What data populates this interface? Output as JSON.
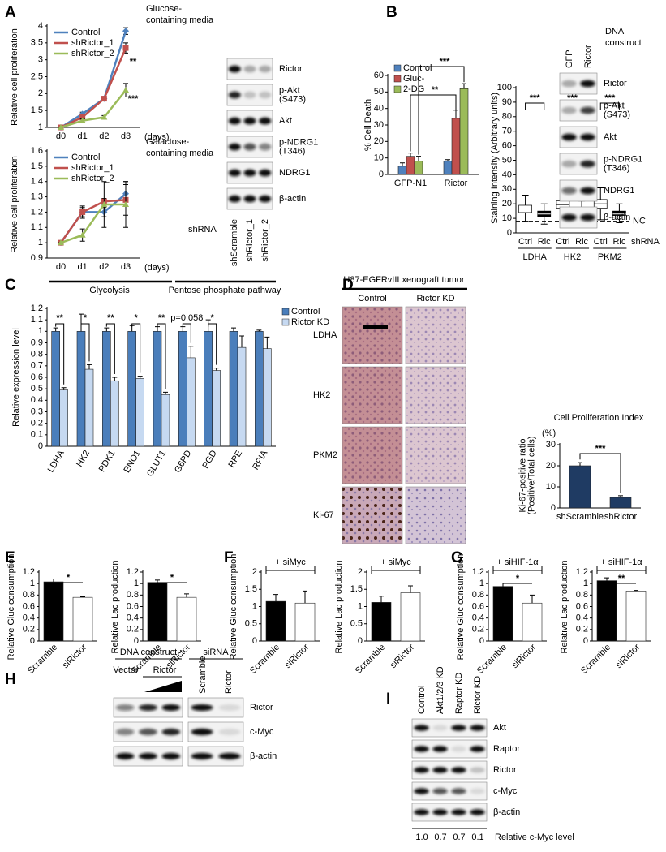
{
  "panel_labels": [
    "A",
    "B",
    "C",
    "D",
    "E",
    "F",
    "G",
    "H",
    "I"
  ],
  "chart_data": [
    {
      "type": "line",
      "title": [
        "Glucose-",
        "containing media"
      ],
      "ylabel": "Relative cell proliferation",
      "xlabel": "(days)",
      "categories": [
        "d0",
        "d1",
        "d2",
        "d3"
      ],
      "ylim": [
        1,
        4
      ],
      "yticks": [
        1,
        1.5,
        2,
        2.5,
        3,
        3.5,
        4
      ],
      "series": [
        {
          "name": "Control",
          "color": "#4f81bd",
          "values": [
            1,
            1.4,
            1.85,
            3.85
          ],
          "errors": [
            0,
            0.05,
            0.05,
            0.1
          ]
        },
        {
          "name": "shRictor_1",
          "color": "#c0504d",
          "values": [
            1,
            1.3,
            1.85,
            3.35
          ],
          "errors": [
            0,
            0.05,
            0.05,
            0.15
          ]
        },
        {
          "name": "shRictor_2",
          "color": "#9bbb59",
          "values": [
            1,
            1.2,
            1.3,
            2.1
          ],
          "errors": [
            0,
            0.05,
            0.05,
            0.2
          ]
        }
      ],
      "annotations": [
        "**",
        "***"
      ]
    },
    {
      "type": "line",
      "title": [
        "Galactose-",
        "containing media"
      ],
      "ylabel": "Relative cell proliferation",
      "xlabel": "(days)",
      "categories": [
        "d0",
        "d1",
        "d2",
        "d3"
      ],
      "ylim": [
        0.9,
        1.6
      ],
      "yticks": [
        0.9,
        1,
        1.1,
        1.2,
        1.3,
        1.4,
        1.5,
        1.6
      ],
      "series": [
        {
          "name": "Control",
          "color": "#4f81bd",
          "values": [
            1,
            1.2,
            1.2,
            1.32
          ],
          "errors": [
            0,
            0.03,
            0.03,
            0.08
          ]
        },
        {
          "name": "shRictor_1",
          "color": "#c0504d",
          "values": [
            1,
            1.2,
            1.27,
            1.28
          ],
          "errors": [
            0,
            0.04,
            0.02,
            0.1
          ]
        },
        {
          "name": "shRictor_2",
          "color": "#9bbb59",
          "values": [
            1,
            1.05,
            1.25,
            1.25
          ],
          "errors": [
            0,
            0.04,
            0.15,
            0.15
          ]
        }
      ]
    },
    {
      "type": "bar",
      "ylabel": "% Cell Death",
      "categories": [
        "GFP-N1",
        "Rictor"
      ],
      "ylim": [
        0,
        60
      ],
      "yticks": [
        0,
        10,
        20,
        30,
        40,
        50,
        60
      ],
      "series": [
        {
          "name": "Control",
          "color": "#4f81bd",
          "values": [
            5,
            8
          ],
          "errors": [
            2,
            1
          ]
        },
        {
          "name": "Gluc-",
          "color": "#c0504d",
          "values": [
            11,
            34
          ],
          "errors": [
            2,
            5
          ]
        },
        {
          "name": "2-DG",
          "color": "#9bbb59",
          "values": [
            8,
            52
          ],
          "errors": [
            3,
            3
          ]
        }
      ],
      "annotations": [
        "***",
        "**"
      ]
    },
    {
      "type": "bar",
      "ylabel": "Relative expression level",
      "categories": [
        "LDHA",
        "HK2",
        "PDK1",
        "ENO1",
        "GLUT1",
        "G6PD",
        "PGD",
        "RPE",
        "RPIA"
      ],
      "ylim": [
        0,
        1.2
      ],
      "yticks": [
        0,
        0.1,
        0.2,
        0.3,
        0.4,
        0.5,
        0.6,
        0.7,
        0.8,
        0.9,
        1,
        1.1,
        1.2
      ],
      "series": [
        {
          "name": "Control",
          "color": "#4a7ebb",
          "values": [
            1,
            1,
            1,
            1,
            1,
            1,
            1,
            1,
            1
          ],
          "errors": [
            0.03,
            0.15,
            0.03,
            0.05,
            0.04,
            0.04,
            0.1,
            0.03,
            0.01
          ]
        },
        {
          "name": "Rictor KD",
          "color": "#c6d9f1",
          "values": [
            0.49,
            0.67,
            0.57,
            0.59,
            0.45,
            0.77,
            0.66,
            0.86,
            0.85
          ],
          "errors": [
            0.02,
            0.04,
            0.03,
            0.02,
            0.02,
            0.1,
            0.02,
            0.1,
            0.1
          ]
        }
      ],
      "annotations": [
        "**",
        "*",
        "**",
        "*",
        "**",
        "p=0.058",
        "*"
      ],
      "groups": [
        "Glycolysis",
        "Pentose phosphate pathway"
      ]
    },
    {
      "type": "box",
      "ylabel": "Staining Intensity (Arbitrary units)",
      "categories": [
        "Ctrl",
        "Ric",
        "Ctrl",
        "Ric",
        "Ctrl",
        "Ric"
      ],
      "ylim": [
        0,
        100
      ],
      "yticks": [
        0,
        10,
        20,
        30,
        40,
        50,
        60,
        70,
        80,
        90,
        100
      ],
      "boxes": [
        {
          "q1": 14,
          "median": 16.5,
          "q3": 19,
          "whislo": 8,
          "whishi": 26
        },
        {
          "q1": 11,
          "median": 13,
          "q3": 15,
          "whislo": 6,
          "whishi": 20
        },
        {
          "q1": 17,
          "median": 19.5,
          "q3": 22,
          "whislo": 9,
          "whishi": 30
        },
        {
          "q1": 12,
          "median": 14,
          "q3": 16,
          "whislo": 5,
          "whishi": 22
        },
        {
          "q1": 17,
          "median": 20,
          "q3": 23,
          "whislo": 9,
          "whishi": 31
        },
        {
          "q1": 12,
          "median": 13,
          "q3": 15,
          "whislo": 7,
          "whishi": 20
        }
      ],
      "box_colors": [
        "#ffffff",
        "#000000",
        "#ffffff",
        "#000000",
        "#ffffff",
        "#000000"
      ],
      "reference_line": {
        "value": 8,
        "label": "NC"
      },
      "groups": [
        "LDHA",
        "HK2",
        "PKM2"
      ],
      "group_label": "shRNA",
      "annotations": [
        "***",
        "***",
        "***"
      ]
    },
    {
      "type": "bar",
      "title": "Cell Proliferation Index",
      "unit_label": "(%)",
      "ylabel": [
        "Ki-67-positive ratio",
        "(Positive/Total cells)"
      ],
      "categories": [
        "shScramble",
        "shRictor"
      ],
      "ylim": [
        0,
        30
      ],
      "yticks": [
        0,
        10,
        20,
        30
      ],
      "values": [
        20,
        5
      ],
      "errors": [
        1.5,
        0.8
      ],
      "colors": [
        "#1f3b63",
        "#1f3b63"
      ],
      "annotations": [
        "***"
      ]
    },
    {
      "type": "bar",
      "ylabel": "Relative Gluc consumption",
      "categories": [
        "Scramble",
        "siRictor"
      ],
      "ylim": [
        0,
        1.2
      ],
      "yticks": [
        0,
        0.2,
        0.4,
        0.6,
        0.8,
        1,
        1.2
      ],
      "values": [
        1.03,
        0.76
      ],
      "errors": [
        0.05,
        0.01
      ],
      "colors": [
        "#000000",
        "#ffffff"
      ],
      "annotations": [
        "*"
      ]
    },
    {
      "type": "bar",
      "ylabel": "Relative Lac production",
      "categories": [
        "Scramble",
        "siRictor"
      ],
      "ylim": [
        0,
        1.2
      ],
      "yticks": [
        0,
        0.2,
        0.4,
        0.6,
        0.8,
        1,
        1.2
      ],
      "values": [
        1.02,
        0.76
      ],
      "errors": [
        0.04,
        0.06
      ],
      "colors": [
        "#000000",
        "#ffffff"
      ],
      "annotations": [
        "*"
      ]
    },
    {
      "type": "bar",
      "ylabel": "Relative Gluc consumption",
      "categories": [
        "Scramble",
        "siRictor"
      ],
      "ylim": [
        0,
        2
      ],
      "yticks": [
        0,
        0.5,
        1,
        1.5,
        2
      ],
      "values": [
        1.15,
        1.1
      ],
      "errors": [
        0.2,
        0.35
      ],
      "colors": [
        "#000000",
        "#ffffff"
      ],
      "annotations": [
        "+ siMyc"
      ]
    },
    {
      "type": "bar",
      "ylabel": "Relative Lac production",
      "categories": [
        "Scramble",
        "siRictor"
      ],
      "ylim": [
        0,
        2
      ],
      "yticks": [
        0,
        0.5,
        1,
        1.5,
        2
      ],
      "values": [
        1.12,
        1.4
      ],
      "errors": [
        0.18,
        0.2
      ],
      "colors": [
        "#000000",
        "#ffffff"
      ],
      "annotations": [
        "+ siMyc"
      ]
    },
    {
      "type": "bar",
      "ylabel": "Relative Gluc consumption",
      "categories": [
        "Scramble",
        "siRictor"
      ],
      "ylim": [
        0,
        1.2
      ],
      "yticks": [
        0,
        0.2,
        0.4,
        0.6,
        0.8,
        1,
        1.2
      ],
      "values": [
        0.95,
        0.66
      ],
      "errors": [
        0.06,
        0.14
      ],
      "colors": [
        "#000000",
        "#ffffff"
      ],
      "annotations": [
        "+ siHIF-1α",
        "*"
      ]
    },
    {
      "type": "bar",
      "ylabel": "Relative Lac production",
      "categories": [
        "Scramble",
        "siRictor"
      ],
      "ylim": [
        0,
        1.2
      ],
      "yticks": [
        0,
        0.2,
        0.4,
        0.6,
        0.8,
        1,
        1.2
      ],
      "values": [
        1.05,
        0.87
      ],
      "errors": [
        0.05,
        0.01
      ],
      "colors": [
        "#000000",
        "#ffffff"
      ],
      "annotations": [
        "+ siHIF-1α",
        "**"
      ]
    }
  ],
  "blots": [
    {
      "label": "shRNA",
      "lanes": [
        "shScramble",
        "shRictor_1",
        "shRictor_2"
      ],
      "lane_colors": [
        "#000000",
        "#d0312d",
        "#3aa935"
      ],
      "rows": [
        "Rictor",
        [
          "p-Akt",
          "(S473)"
        ],
        "Akt",
        [
          "p-NDRG1",
          "(T346)"
        ],
        "NDRG1",
        "β-actin"
      ]
    },
    {
      "header": [
        "DNA",
        "construct"
      ],
      "lanes": [
        "GFP",
        "Rictor"
      ],
      "rows": [
        "Rictor",
        [
          "p-Akt",
          "(S473)"
        ],
        "Akt",
        [
          "p-NDRG1",
          "(T346)"
        ],
        "NDRG1",
        "β-actin"
      ]
    },
    {
      "header": "DNA construct",
      "groups": [
        "Vector",
        "Rictor"
      ]
    },
    {
      "header": "siRNA",
      "lanes": [
        "Scramble",
        "Rictor"
      ],
      "rows": [
        "Rictor",
        "c-Myc",
        "β-actin"
      ]
    },
    {
      "lanes": [
        "Control",
        "Akt1/2/3 KD",
        "Raptor KD",
        "Rictor KD"
      ],
      "rows": [
        "Akt",
        "Raptor",
        "Rictor",
        "c-Myc",
        "β-actin"
      ],
      "quantification": [
        "1.0",
        "0.7",
        "0.7",
        "0.1"
      ],
      "quantification_label": "Relative c-Myc level"
    }
  ],
  "histology": {
    "title": "U87-EGFRvIII xenograft tumor",
    "columns": [
      "Control",
      "Rictor KD"
    ],
    "rows": [
      "LDHA",
      "HK2",
      "PKM2",
      "Ki-67"
    ]
  }
}
